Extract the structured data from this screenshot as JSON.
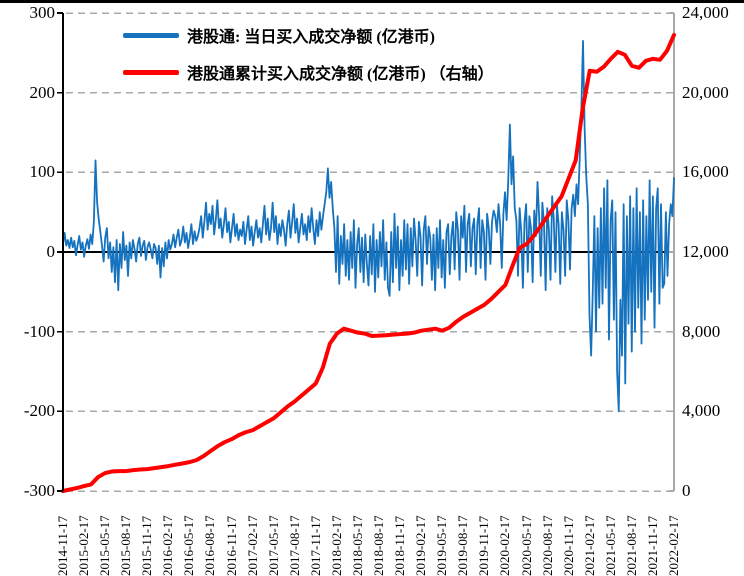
{
  "legend": {
    "items": [
      {
        "label": "港股通: 当日买入成交净额 (亿港币)",
        "color": "#1572BE"
      },
      {
        "label": "港股通累计买入成交净额 (亿港币) （右轴）",
        "color": "#FE0000"
      }
    ]
  },
  "chart_data": {
    "type": "line",
    "title": "",
    "grid": {
      "color": "#A9A9A9",
      "zero_line_color": "#000000",
      "right_axis_color": "#A9A9A9",
      "left_axis_color": "#000000"
    },
    "left_axis": {
      "range": [
        -300,
        300
      ],
      "ticks": [
        300,
        200,
        100,
        0,
        -100,
        -200,
        -300
      ],
      "labels": [
        "300",
        "200",
        "100",
        "0",
        "-100",
        "-200",
        "-300"
      ]
    },
    "right_axis": {
      "range": [
        0,
        24000
      ],
      "ticks": [
        24000,
        20000,
        16000,
        12000,
        8000,
        4000,
        0
      ],
      "labels": [
        "24,000",
        "20,000",
        "16,000",
        "12,000",
        "8,000",
        "4,000",
        "0"
      ]
    },
    "x_axis": {
      "tick_labels": [
        "2014-11-17",
        "2015-02-17",
        "2015-05-17",
        "2015-08-17",
        "2015-11-17",
        "2016-02-17",
        "2016-05-17",
        "2016-08-17",
        "2016-11-17",
        "2017-02-17",
        "2017-05-17",
        "2017-08-17",
        "2017-11-17",
        "2018-02-17",
        "2018-05-17",
        "2018-08-17",
        "2018-11-17",
        "2019-02-17",
        "2019-05-17",
        "2019-08-17",
        "2019-11-17",
        "2020-02-17",
        "2020-05-17",
        "2020-08-17",
        "2020-11-17",
        "2021-02-17",
        "2021-05-17",
        "2021-08-17",
        "2021-11-17",
        "2022-02-17"
      ]
    },
    "series": [
      {
        "name": "港股通: 当日买入成交净额 (亿港币)",
        "axis": "left",
        "color": "#1572BE",
        "width": 1.8,
        "values": [
          10,
          24,
          8,
          15,
          5,
          18,
          6,
          14,
          -4,
          9,
          20,
          3,
          12,
          -6,
          8,
          16,
          4,
          22,
          10,
          38,
          115,
          62,
          41,
          25,
          8,
          -12,
          18,
          30,
          -8,
          12,
          -25,
          6,
          -38,
          15,
          -48,
          10,
          -20,
          25,
          -10,
          8,
          -30,
          12,
          -8,
          15,
          4,
          -12,
          10,
          18,
          -5,
          8,
          14,
          -10,
          6,
          12,
          3,
          -8,
          10,
          5,
          -15,
          8,
          -32,
          5,
          -18,
          12,
          -8,
          15,
          3,
          10,
          22,
          6,
          18,
          28,
          8,
          15,
          32,
          12,
          24,
          5,
          18,
          35,
          10,
          26,
          14,
          20,
          30,
          45,
          18,
          38,
          62,
          28,
          48,
          35,
          58,
          22,
          40,
          65,
          30,
          42,
          18,
          35,
          55,
          25,
          38,
          12,
          30,
          48,
          20,
          35,
          15,
          28,
          20,
          38,
          10,
          28,
          45,
          15,
          32,
          8,
          25,
          40,
          18,
          30,
          12,
          35,
          58,
          22,
          42,
          15,
          30,
          62,
          25,
          45,
          10,
          35,
          20,
          40,
          28,
          8,
          35,
          52,
          18,
          38,
          60,
          24,
          42,
          12,
          30,
          48,
          22,
          35,
          15,
          45,
          25,
          55,
          30,
          10,
          40,
          20,
          50,
          28,
          45,
          60,
          75,
          105,
          68,
          88,
          55,
          30,
          -25,
          45,
          -40,
          20,
          -15,
          35,
          -30,
          15,
          -35,
          25,
          -20,
          40,
          -45,
          10,
          30,
          -25,
          18,
          -38,
          22,
          -15,
          -42,
          20,
          -28,
          35,
          -50,
          15,
          -32,
          25,
          -18,
          40,
          -35,
          12,
          -45,
          -55,
          25,
          -38,
          48,
          -20,
          32,
          -48,
          15,
          -30,
          40,
          -22,
          35,
          -40,
          30,
          -18,
          42,
          15,
          -30,
          38,
          20,
          -42,
          28,
          45,
          -15,
          32,
          18,
          -35,
          22,
          -48,
          30,
          -20,
          40,
          -32,
          15,
          -45,
          25,
          35,
          -28,
          20,
          38,
          -22,
          50,
          28,
          -35,
          45,
          18,
          58,
          -25,
          35,
          48,
          -18,
          30,
          42,
          -28,
          35,
          55,
          -20,
          40,
          25,
          -35,
          48,
          30,
          -15,
          38,
          52,
          45,
          25,
          60,
          35,
          -20,
          48,
          75,
          40,
          90,
          160,
          85,
          120,
          55,
          40,
          -30,
          55,
          25,
          -45,
          38,
          60,
          -25,
          45,
          30,
          -38,
          52,
          20,
          88,
          45,
          -30,
          62,
          35,
          -48,
          55,
          28,
          -35,
          70,
          42,
          -25,
          58,
          35,
          -40,
          50,
          28,
          -30,
          65,
          40,
          -22,
          55,
          72,
          45,
          85,
          60,
          120,
          180,
          265,
          155,
          95,
          60,
          -80,
          -130,
          -50,
          45,
          -100,
          30,
          -70,
          55,
          -65,
          80,
          -45,
          90,
          -110,
          40,
          65,
          -85,
          50,
          -150,
          -200,
          -60,
          -130,
          60,
          -165,
          45,
          -90,
          70,
          -125,
          55,
          -100,
          80,
          -70,
          50,
          -115,
          65,
          -85,
          45,
          -60,
          90,
          -50,
          70,
          -95,
          55,
          80,
          -65,
          60,
          -45,
          -40,
          50,
          -30,
          35,
          60,
          45,
          93
        ]
      },
      {
        "name": "港股通累计买入成交净额 (亿港币) （右轴）",
        "axis": "right",
        "color": "#FE0000",
        "width": 4,
        "values": [
          0,
          80,
          150,
          250,
          330,
          700,
          900,
          980,
          1000,
          1000,
          1050,
          1080,
          1100,
          1150,
          1200,
          1250,
          1320,
          1380,
          1450,
          1550,
          1750,
          2000,
          2250,
          2450,
          2600,
          2800,
          2950,
          3050,
          3250,
          3450,
          3650,
          3950,
          4250,
          4500,
          4800,
          5100,
          5400,
          6200,
          7400,
          7900,
          8150,
          8050,
          7950,
          7900,
          7780,
          7800,
          7820,
          7850,
          7880,
          7900,
          7950,
          8050,
          8100,
          8150,
          8050,
          8200,
          8500,
          8750,
          8950,
          9150,
          9350,
          9650,
          10000,
          10350,
          11300,
          12200,
          12400,
          12800,
          13300,
          13800,
          14300,
          14800,
          15700,
          16600,
          19200,
          21100,
          21050,
          21300,
          21700,
          22050,
          21900,
          21350,
          21250,
          21600,
          21700,
          21650,
          22100,
          22900
        ]
      }
    ],
    "legend_position": "top-left-inside"
  }
}
